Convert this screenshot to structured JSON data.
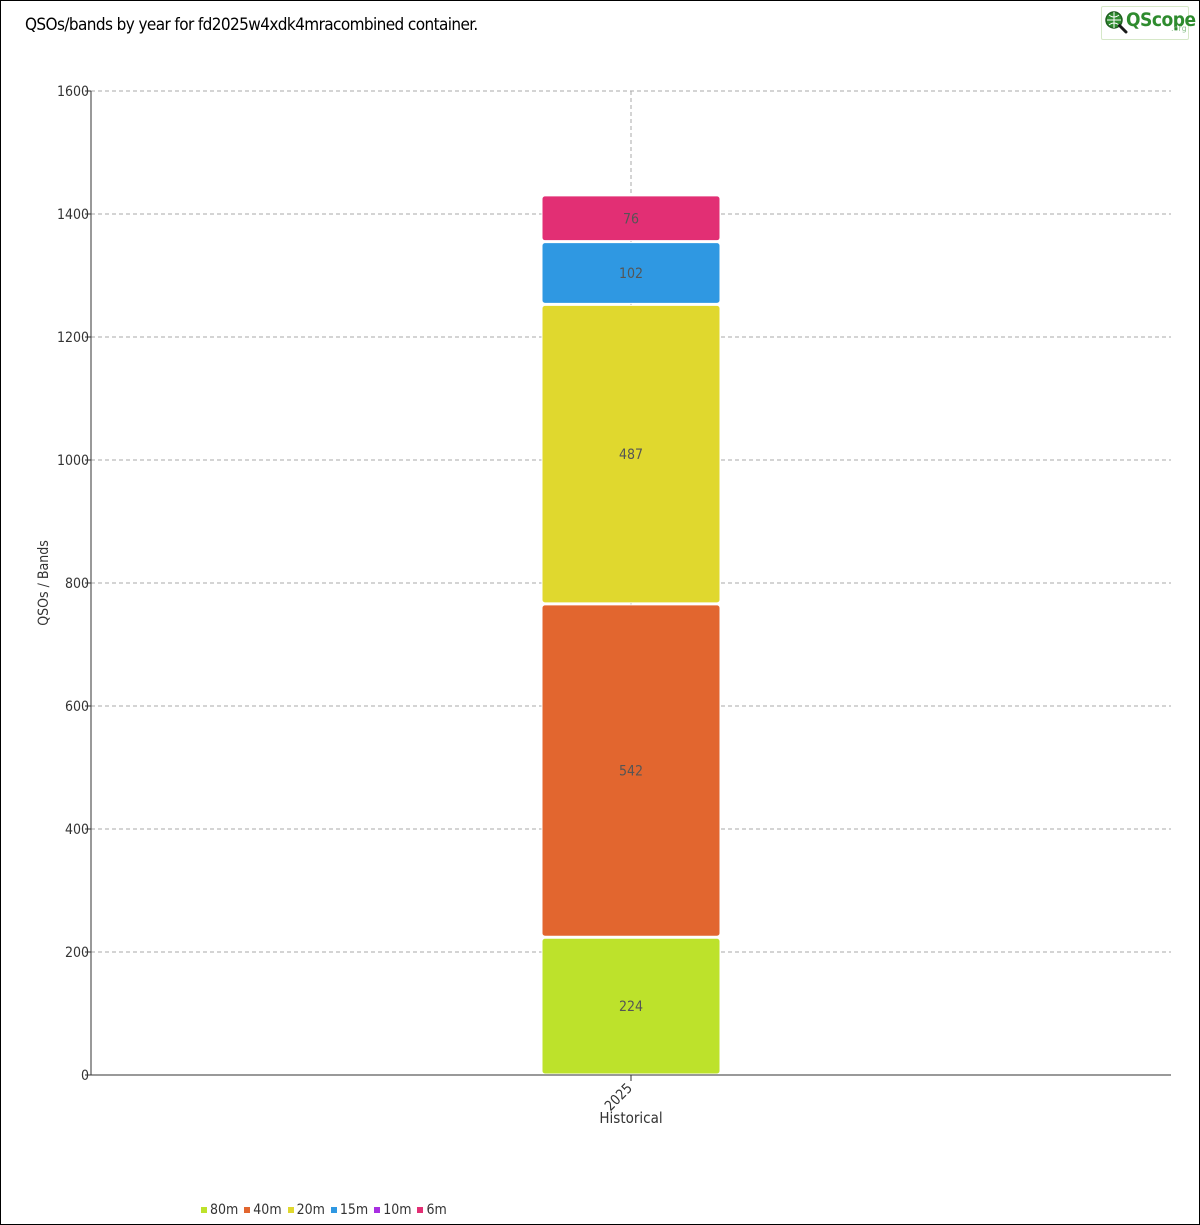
{
  "title": "QSOs/bands by year for fd2025w4xdk4mracombined container.",
  "logo": {
    "word": "QScope",
    "suffix": ".org",
    "icon": "magnifier-globe-icon"
  },
  "chart_data": {
    "type": "bar",
    "stacked": true,
    "categories": [
      "2025"
    ],
    "xlabel": "Historical",
    "ylabel": "QSOs / Bands",
    "ylim": [
      0,
      1600
    ],
    "yticks": [
      0,
      200,
      400,
      600,
      800,
      1000,
      1200,
      1400,
      1600
    ],
    "grid": true,
    "legend_position": "bottom-left",
    "series": [
      {
        "name": "80m",
        "values": [
          224
        ],
        "color": "#bde22b"
      },
      {
        "name": "40m",
        "values": [
          542
        ],
        "color": "#e2662f"
      },
      {
        "name": "20m",
        "values": [
          487
        ],
        "color": "#e0d82e"
      },
      {
        "name": "15m",
        "values": [
          102
        ],
        "color": "#2f98e2"
      },
      {
        "name": "10m",
        "values": [
          0
        ],
        "color": "#a82fe2"
      },
      {
        "name": "6m",
        "values": [
          76
        ],
        "color": "#e22f74"
      }
    ]
  }
}
